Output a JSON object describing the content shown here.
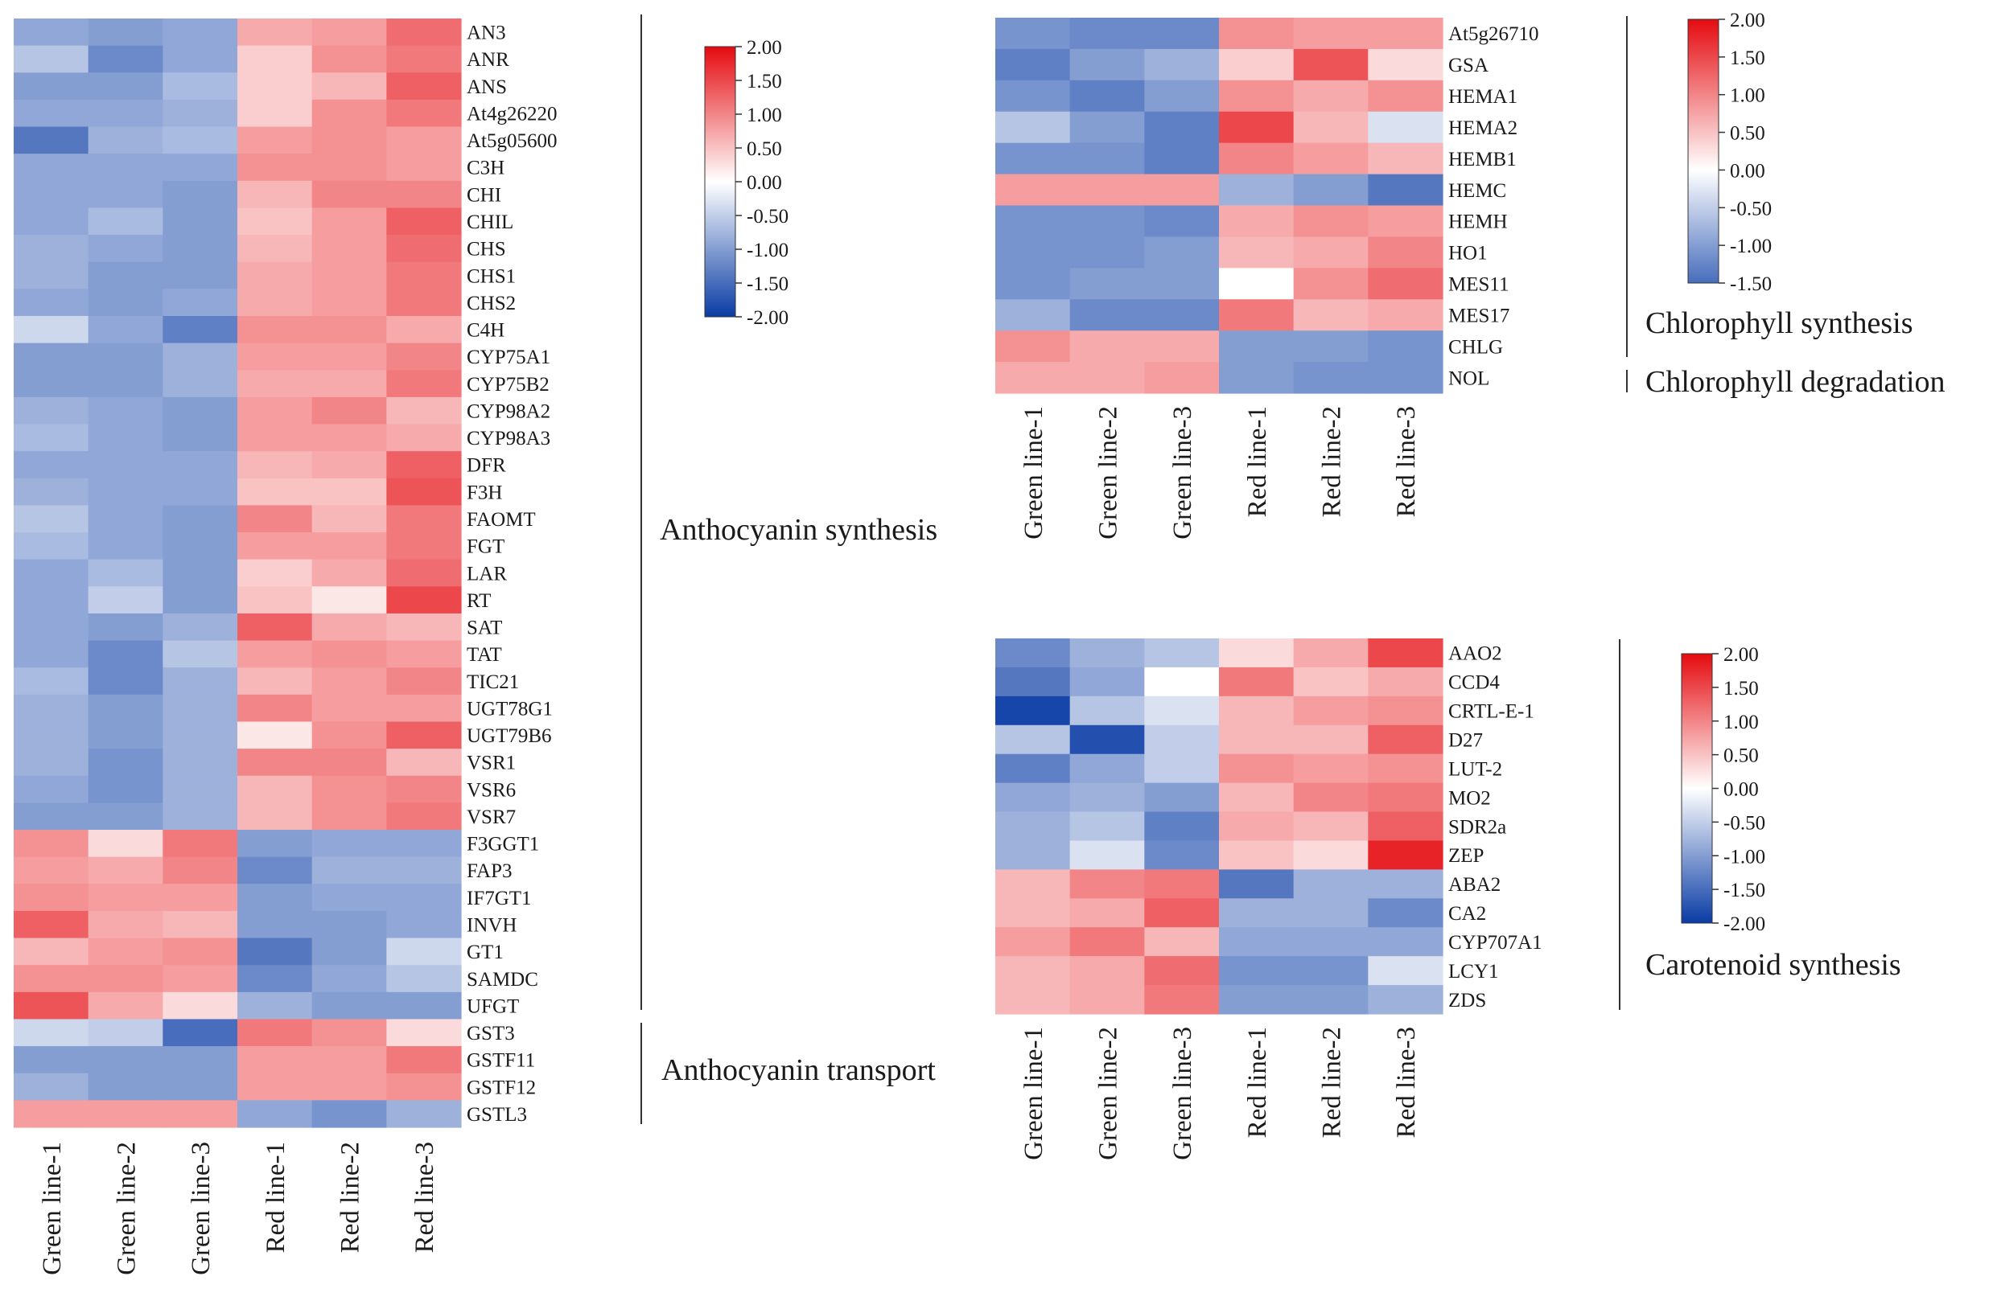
{
  "chart_data": [
    {
      "type": "heatmap",
      "id": "anthocyanin",
      "title": "",
      "columns": [
        "Green line-1",
        "Green line-2",
        "Green line-3",
        "Red line-1",
        "Red line-2",
        "Red line-3"
      ],
      "rows": [
        "AN3",
        "ANR",
        "ANS",
        "At4g26220",
        "At5g05600",
        "C3H",
        "CHI",
        "CHIL",
        "CHS",
        "CHS1",
        "CHS2",
        "C4H",
        "CYP75A1",
        "CYP75B2",
        "CYP98A2",
        "CYP98A3",
        "DFR",
        "F3H",
        "FAOMT",
        "FGT",
        "LAR",
        "RT",
        "SAT",
        "TAT",
        "TIC21",
        "UGT78G1",
        "UGT79B6",
        "VSR1",
        "VSR6",
        "VSR7",
        "F3GGT1",
        "FAP3",
        "IF7GT1",
        "INVH",
        "GT1",
        "SAMDC",
        "UFGT",
        "GST3",
        "GSTF11",
        "GSTF12",
        "GSTL3"
      ],
      "values": [
        [
          -0.9,
          -1.0,
          -0.9,
          0.7,
          0.8,
          1.2
        ],
        [
          -0.6,
          -1.2,
          -0.9,
          0.4,
          0.9,
          1.1
        ],
        [
          -1.0,
          -1.0,
          -0.7,
          0.4,
          0.6,
          1.3
        ],
        [
          -0.9,
          -0.9,
          -0.8,
          0.4,
          0.9,
          1.1
        ],
        [
          -1.4,
          -0.8,
          -0.7,
          0.8,
          0.9,
          0.8
        ],
        [
          -0.9,
          -0.9,
          -0.9,
          0.9,
          0.9,
          0.8
        ],
        [
          -0.9,
          -0.9,
          -1.0,
          0.6,
          1.0,
          1.0
        ],
        [
          -0.9,
          -0.7,
          -1.0,
          0.5,
          0.8,
          1.3
        ],
        [
          -0.8,
          -0.9,
          -1.0,
          0.6,
          0.8,
          1.2
        ],
        [
          -0.8,
          -1.0,
          -1.0,
          0.7,
          0.8,
          1.1
        ],
        [
          -0.9,
          -1.0,
          -0.9,
          0.7,
          0.8,
          1.1
        ],
        [
          -0.4,
          -0.9,
          -1.3,
          0.9,
          0.9,
          0.7
        ],
        [
          -1.0,
          -1.0,
          -0.8,
          0.8,
          0.8,
          1.0
        ],
        [
          -1.0,
          -1.0,
          -0.8,
          0.7,
          0.7,
          1.1
        ],
        [
          -0.8,
          -0.9,
          -1.0,
          0.8,
          1.0,
          0.6
        ],
        [
          -0.7,
          -0.9,
          -1.0,
          0.8,
          0.8,
          0.7
        ],
        [
          -0.9,
          -0.9,
          -0.9,
          0.6,
          0.7,
          1.3
        ],
        [
          -0.8,
          -0.9,
          -0.9,
          0.5,
          0.5,
          1.4
        ],
        [
          -0.6,
          -0.9,
          -1.0,
          1.0,
          0.6,
          1.1
        ],
        [
          -0.7,
          -0.9,
          -1.0,
          0.8,
          0.8,
          1.1
        ],
        [
          -0.9,
          -0.7,
          -1.0,
          0.4,
          0.7,
          1.2
        ],
        [
          -0.9,
          -0.5,
          -1.0,
          0.5,
          0.2,
          1.5
        ],
        [
          -0.9,
          -1.0,
          -0.8,
          1.3,
          0.7,
          0.6
        ],
        [
          -0.9,
          -1.2,
          -0.6,
          0.8,
          0.9,
          0.8
        ],
        [
          -0.7,
          -1.2,
          -0.8,
          0.6,
          0.8,
          1.0
        ],
        [
          -0.8,
          -1.0,
          -0.8,
          1.0,
          0.8,
          0.8
        ],
        [
          -0.8,
          -1.0,
          -0.8,
          0.2,
          0.9,
          1.3
        ],
        [
          -0.8,
          -1.1,
          -0.8,
          1.0,
          1.0,
          0.6
        ],
        [
          -0.9,
          -1.1,
          -0.8,
          0.6,
          0.9,
          1.0
        ],
        [
          -1.0,
          -1.0,
          -0.8,
          0.6,
          0.9,
          1.1
        ],
        [
          0.9,
          0.3,
          1.1,
          -1.0,
          -0.9,
          -0.9
        ],
        [
          0.8,
          0.7,
          1.0,
          -1.2,
          -0.8,
          -0.8
        ],
        [
          0.9,
          0.8,
          0.8,
          -1.0,
          -0.9,
          -0.9
        ],
        [
          1.3,
          0.7,
          0.6,
          -1.0,
          -1.0,
          -0.9
        ],
        [
          0.6,
          0.8,
          0.9,
          -1.4,
          -1.0,
          -0.4
        ],
        [
          0.9,
          0.9,
          0.8,
          -1.2,
          -0.9,
          -0.6
        ],
        [
          1.4,
          0.7,
          0.3,
          -0.8,
          -1.0,
          -1.0
        ],
        [
          -0.4,
          -0.5,
          -1.5,
          1.1,
          0.9,
          0.3
        ],
        [
          -1.0,
          -1.0,
          -1.0,
          0.8,
          0.8,
          1.1
        ],
        [
          -0.8,
          -1.0,
          -1.0,
          0.8,
          0.8,
          0.9
        ],
        [
          0.8,
          0.8,
          0.8,
          -0.9,
          -1.1,
          -0.8
        ]
      ],
      "groups": [
        "Anthocyanin synthesis",
        "Anthocyanin transport"
      ],
      "colorbar": {
        "min": -2.0,
        "max": 2.0,
        "ticks": [
          "2.00",
          "1.50",
          "1.00",
          "0.50",
          "0.00",
          "-0.50",
          "-1.00",
          "-1.50",
          "-2.00"
        ]
      }
    },
    {
      "type": "heatmap",
      "id": "chlorophyll",
      "title": "",
      "columns": [
        "Green line-1",
        "Green line-2",
        "Green line-3",
        "Red line-1",
        "Red line-2",
        "Red line-3"
      ],
      "rows": [
        "At5g26710",
        "GSA",
        "HEMA1",
        "HEMA2",
        "HEMB1",
        "HEMC",
        "HEMH",
        "HO1",
        "MES11",
        "MES17",
        "CHLG",
        "NOL"
      ],
      "values": [
        [
          -1.1,
          -1.2,
          -1.2,
          0.9,
          0.8,
          0.8
        ],
        [
          -1.3,
          -1.0,
          -0.8,
          0.4,
          1.4,
          0.3
        ],
        [
          -1.1,
          -1.3,
          -1.0,
          0.9,
          0.7,
          0.9
        ],
        [
          -0.6,
          -1.0,
          -1.3,
          1.5,
          0.6,
          -0.3
        ],
        [
          -1.1,
          -1.1,
          -1.3,
          1.0,
          0.8,
          0.6
        ],
        [
          0.8,
          0.8,
          0.8,
          -0.8,
          -1.0,
          -1.4
        ],
        [
          -1.1,
          -1.1,
          -1.2,
          0.7,
          0.9,
          0.8
        ],
        [
          -1.1,
          -1.1,
          -1.0,
          0.6,
          0.7,
          1.0
        ],
        [
          -1.1,
          -1.0,
          -1.0,
          0.0,
          0.9,
          1.2
        ],
        [
          -0.8,
          -1.2,
          -1.2,
          1.1,
          0.6,
          0.7
        ],
        [
          0.9,
          0.7,
          0.7,
          -1.0,
          -1.0,
          -1.1
        ],
        [
          0.7,
          0.7,
          0.8,
          -1.0,
          -1.1,
          -1.1
        ]
      ],
      "groups": [
        "Chlorophyll synthesis",
        "Chlorophyll degradation"
      ],
      "colorbar": {
        "min": -1.5,
        "max": 2.0,
        "ticks": [
          "2.00",
          "1.50",
          "1.00",
          "0.50",
          "0.00",
          "-0.50",
          "-1.00",
          "-1.50"
        ]
      }
    },
    {
      "type": "heatmap",
      "id": "carotenoid",
      "title": "",
      "columns": [
        "Green line-1",
        "Green line-2",
        "Green line-3",
        "Red line-1",
        "Red line-2",
        "Red line-3"
      ],
      "rows": [
        "AAO2",
        "CCD4",
        "CRTL-E-1",
        "D27",
        "LUT-2",
        "MO2",
        "SDR2a",
        "ZEP",
        "ABA2",
        "CA2",
        "CYP707A1",
        "LCY1",
        "ZDS"
      ],
      "values": [
        [
          -1.2,
          -0.8,
          -0.6,
          0.3,
          0.7,
          1.5
        ],
        [
          -1.4,
          -0.9,
          0.0,
          1.1,
          0.5,
          0.7
        ],
        [
          -1.9,
          -0.6,
          -0.3,
          0.6,
          0.8,
          0.9
        ],
        [
          -0.6,
          -1.8,
          -0.5,
          0.6,
          0.6,
          1.3
        ],
        [
          -1.3,
          -0.9,
          -0.5,
          0.9,
          0.8,
          0.9
        ],
        [
          -0.9,
          -0.8,
          -1.0,
          0.6,
          1.0,
          1.1
        ],
        [
          -0.8,
          -0.6,
          -1.3,
          0.7,
          0.6,
          1.3
        ],
        [
          -0.8,
          -0.3,
          -1.2,
          0.5,
          0.3,
          1.8
        ],
        [
          0.6,
          1.0,
          1.1,
          -1.4,
          -0.8,
          -0.8
        ],
        [
          0.6,
          0.7,
          1.3,
          -0.8,
          -0.8,
          -1.2
        ],
        [
          0.8,
          1.1,
          0.6,
          -0.9,
          -0.9,
          -0.9
        ],
        [
          0.6,
          0.7,
          1.2,
          -1.1,
          -1.1,
          -0.3
        ],
        [
          0.6,
          0.7,
          1.1,
          -1.0,
          -1.0,
          -0.8
        ]
      ],
      "groups": [
        "Carotenoid synthesis"
      ],
      "colorbar": {
        "min": -2.0,
        "max": 2.0,
        "ticks": [
          "2.00",
          "1.50",
          "1.00",
          "0.50",
          "0.00",
          "-0.50",
          "-1.00",
          "-1.50",
          "-2.00"
        ]
      }
    }
  ]
}
